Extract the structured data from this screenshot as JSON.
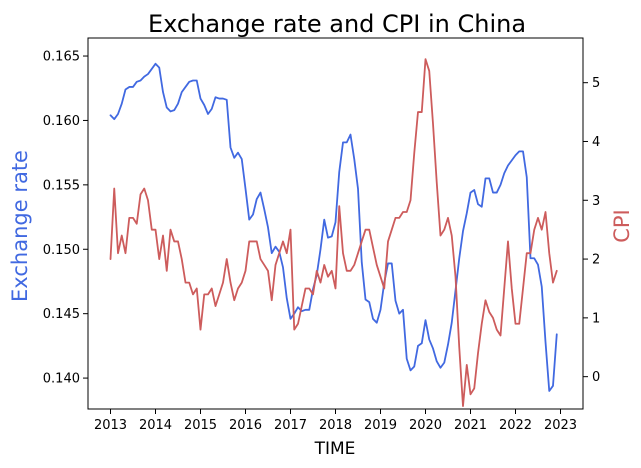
{
  "chart_data": {
    "type": "line",
    "title": "Exchange rate and CPI in China",
    "xlabel": "TIME",
    "ylabel_left": "Exchange rate",
    "ylabel_right": "CPI",
    "xlim": [
      2012.5,
      2023.5
    ],
    "ylim_left": [
      0.1376,
      0.1664
    ],
    "ylim_right": [
      -0.55,
      5.76
    ],
    "x_ticks": [
      2013,
      2014,
      2015,
      2016,
      2017,
      2018,
      2019,
      2020,
      2021,
      2022,
      2023
    ],
    "y_ticks_left": [
      0.14,
      0.145,
      0.15,
      0.155,
      0.16,
      0.165
    ],
    "y_ticks_right": [
      0,
      1,
      2,
      3,
      4,
      5
    ],
    "colors": {
      "exchange": "#4169e1",
      "cpi": "#cd5c5c"
    },
    "grid": false,
    "series": [
      {
        "key": "exchange",
        "axis": "left",
        "points": [
          [
            2013.0,
            0.1604
          ],
          [
            2013.083,
            0.1601
          ],
          [
            2013.167,
            0.1605
          ],
          [
            2013.25,
            0.1613
          ],
          [
            2013.333,
            0.1624
          ],
          [
            2013.417,
            0.1626
          ],
          [
            2013.5,
            0.1626
          ],
          [
            2013.583,
            0.163
          ],
          [
            2013.667,
            0.1631
          ],
          [
            2013.75,
            0.1634
          ],
          [
            2013.833,
            0.1636
          ],
          [
            2013.917,
            0.164
          ],
          [
            2014.0,
            0.1644
          ],
          [
            2014.083,
            0.1641
          ],
          [
            2014.167,
            0.1622
          ],
          [
            2014.25,
            0.161
          ],
          [
            2014.333,
            0.1607
          ],
          [
            2014.417,
            0.1608
          ],
          [
            2014.5,
            0.1613
          ],
          [
            2014.583,
            0.1622
          ],
          [
            2014.667,
            0.1626
          ],
          [
            2014.75,
            0.163
          ],
          [
            2014.833,
            0.1631
          ],
          [
            2014.917,
            0.1631
          ],
          [
            2015.0,
            0.1617
          ],
          [
            2015.083,
            0.1612
          ],
          [
            2015.167,
            0.1605
          ],
          [
            2015.25,
            0.1609
          ],
          [
            2015.333,
            0.1618
          ],
          [
            2015.417,
            0.1617
          ],
          [
            2015.5,
            0.1617
          ],
          [
            2015.583,
            0.1616
          ],
          [
            2015.667,
            0.1579
          ],
          [
            2015.75,
            0.1571
          ],
          [
            2015.833,
            0.1575
          ],
          [
            2015.917,
            0.157
          ],
          [
            2016.0,
            0.1547
          ],
          [
            2016.083,
            0.1523
          ],
          [
            2016.167,
            0.1527
          ],
          [
            2016.25,
            0.1539
          ],
          [
            2016.333,
            0.1544
          ],
          [
            2016.417,
            0.1531
          ],
          [
            2016.5,
            0.1517
          ],
          [
            2016.583,
            0.1497
          ],
          [
            2016.667,
            0.1502
          ],
          [
            2016.75,
            0.1498
          ],
          [
            2016.833,
            0.1486
          ],
          [
            2016.917,
            0.1462
          ],
          [
            2017.0,
            0.1446
          ],
          [
            2017.083,
            0.145
          ],
          [
            2017.167,
            0.1455
          ],
          [
            2017.25,
            0.1452
          ],
          [
            2017.333,
            0.1453
          ],
          [
            2017.417,
            0.1453
          ],
          [
            2017.5,
            0.1469
          ],
          [
            2017.583,
            0.148
          ],
          [
            2017.667,
            0.15
          ],
          [
            2017.75,
            0.1523
          ],
          [
            2017.833,
            0.1509
          ],
          [
            2017.917,
            0.151
          ],
          [
            2018.0,
            0.1521
          ],
          [
            2018.083,
            0.156
          ],
          [
            2018.167,
            0.1583
          ],
          [
            2018.25,
            0.1583
          ],
          [
            2018.333,
            0.1589
          ],
          [
            2018.417,
            0.157
          ],
          [
            2018.5,
            0.1547
          ],
          [
            2018.583,
            0.149
          ],
          [
            2018.667,
            0.1461
          ],
          [
            2018.75,
            0.1459
          ],
          [
            2018.833,
            0.1446
          ],
          [
            2018.917,
            0.1443
          ],
          [
            2019.0,
            0.1453
          ],
          [
            2019.083,
            0.1474
          ],
          [
            2019.167,
            0.1489
          ],
          [
            2019.25,
            0.1489
          ],
          [
            2019.333,
            0.146
          ],
          [
            2019.417,
            0.145
          ],
          [
            2019.5,
            0.1453
          ],
          [
            2019.583,
            0.1415
          ],
          [
            2019.667,
            0.1406
          ],
          [
            2019.75,
            0.1409
          ],
          [
            2019.833,
            0.1425
          ],
          [
            2019.917,
            0.1427
          ],
          [
            2020.0,
            0.1445
          ],
          [
            2020.083,
            0.143
          ],
          [
            2020.167,
            0.1423
          ],
          [
            2020.25,
            0.1413
          ],
          [
            2020.333,
            0.1408
          ],
          [
            2020.417,
            0.1412
          ],
          [
            2020.5,
            0.1426
          ],
          [
            2020.583,
            0.1443
          ],
          [
            2020.667,
            0.1468
          ],
          [
            2020.75,
            0.1493
          ],
          [
            2020.833,
            0.1514
          ],
          [
            2020.917,
            0.1528
          ],
          [
            2021.0,
            0.1544
          ],
          [
            2021.083,
            0.1546
          ],
          [
            2021.167,
            0.1535
          ],
          [
            2021.25,
            0.1533
          ],
          [
            2021.333,
            0.1555
          ],
          [
            2021.417,
            0.1555
          ],
          [
            2021.5,
            0.1544
          ],
          [
            2021.583,
            0.1544
          ],
          [
            2021.667,
            0.155
          ],
          [
            2021.75,
            0.1559
          ],
          [
            2021.833,
            0.1565
          ],
          [
            2021.917,
            0.1569
          ],
          [
            2022.0,
            0.1573
          ],
          [
            2022.083,
            0.1576
          ],
          [
            2022.167,
            0.1576
          ],
          [
            2022.25,
            0.1556
          ],
          [
            2022.333,
            0.1493
          ],
          [
            2022.417,
            0.1493
          ],
          [
            2022.5,
            0.1488
          ],
          [
            2022.583,
            0.1471
          ],
          [
            2022.667,
            0.1428
          ],
          [
            2022.75,
            0.139
          ],
          [
            2022.833,
            0.1394
          ],
          [
            2022.917,
            0.1434
          ]
        ]
      },
      {
        "key": "cpi",
        "axis": "right",
        "points": [
          [
            2013.0,
            2.0
          ],
          [
            2013.083,
            3.2
          ],
          [
            2013.167,
            2.1
          ],
          [
            2013.25,
            2.4
          ],
          [
            2013.333,
            2.1
          ],
          [
            2013.417,
            2.7
          ],
          [
            2013.5,
            2.7
          ],
          [
            2013.583,
            2.6
          ],
          [
            2013.667,
            3.1
          ],
          [
            2013.75,
            3.2
          ],
          [
            2013.833,
            3.0
          ],
          [
            2013.917,
            2.5
          ],
          [
            2014.0,
            2.5
          ],
          [
            2014.083,
            2.0
          ],
          [
            2014.167,
            2.4
          ],
          [
            2014.25,
            1.8
          ],
          [
            2014.333,
            2.5
          ],
          [
            2014.417,
            2.3
          ],
          [
            2014.5,
            2.3
          ],
          [
            2014.583,
            2.0
          ],
          [
            2014.667,
            1.6
          ],
          [
            2014.75,
            1.6
          ],
          [
            2014.833,
            1.4
          ],
          [
            2014.917,
            1.5
          ],
          [
            2015.0,
            0.8
          ],
          [
            2015.083,
            1.4
          ],
          [
            2015.167,
            1.4
          ],
          [
            2015.25,
            1.5
          ],
          [
            2015.333,
            1.2
          ],
          [
            2015.417,
            1.4
          ],
          [
            2015.5,
            1.6
          ],
          [
            2015.583,
            2.0
          ],
          [
            2015.667,
            1.6
          ],
          [
            2015.75,
            1.3
          ],
          [
            2015.833,
            1.5
          ],
          [
            2015.917,
            1.6
          ],
          [
            2016.0,
            1.8
          ],
          [
            2016.083,
            2.3
          ],
          [
            2016.167,
            2.3
          ],
          [
            2016.25,
            2.3
          ],
          [
            2016.333,
            2.0
          ],
          [
            2016.417,
            1.9
          ],
          [
            2016.5,
            1.8
          ],
          [
            2016.583,
            1.3
          ],
          [
            2016.667,
            1.9
          ],
          [
            2016.75,
            2.1
          ],
          [
            2016.833,
            2.3
          ],
          [
            2016.917,
            2.1
          ],
          [
            2017.0,
            2.5
          ],
          [
            2017.083,
            0.8
          ],
          [
            2017.167,
            0.9
          ],
          [
            2017.25,
            1.2
          ],
          [
            2017.333,
            1.5
          ],
          [
            2017.417,
            1.5
          ],
          [
            2017.5,
            1.4
          ],
          [
            2017.583,
            1.8
          ],
          [
            2017.667,
            1.6
          ],
          [
            2017.75,
            1.9
          ],
          [
            2017.833,
            1.7
          ],
          [
            2017.917,
            1.8
          ],
          [
            2018.0,
            1.5
          ],
          [
            2018.083,
            2.9
          ],
          [
            2018.167,
            2.1
          ],
          [
            2018.25,
            1.8
          ],
          [
            2018.333,
            1.8
          ],
          [
            2018.417,
            1.9
          ],
          [
            2018.5,
            2.1
          ],
          [
            2018.583,
            2.3
          ],
          [
            2018.667,
            2.5
          ],
          [
            2018.75,
            2.5
          ],
          [
            2018.833,
            2.2
          ],
          [
            2018.917,
            1.9
          ],
          [
            2019.0,
            1.7
          ],
          [
            2019.083,
            1.5
          ],
          [
            2019.167,
            2.3
          ],
          [
            2019.25,
            2.5
          ],
          [
            2019.333,
            2.7
          ],
          [
            2019.417,
            2.7
          ],
          [
            2019.5,
            2.8
          ],
          [
            2019.583,
            2.8
          ],
          [
            2019.667,
            3.0
          ],
          [
            2019.75,
            3.8
          ],
          [
            2019.833,
            4.5
          ],
          [
            2019.917,
            4.5
          ],
          [
            2020.0,
            5.4
          ],
          [
            2020.083,
            5.2
          ],
          [
            2020.167,
            4.3
          ],
          [
            2020.25,
            3.3
          ],
          [
            2020.333,
            2.4
          ],
          [
            2020.417,
            2.5
          ],
          [
            2020.5,
            2.7
          ],
          [
            2020.583,
            2.4
          ],
          [
            2020.667,
            1.7
          ],
          [
            2020.75,
            0.5
          ],
          [
            2020.833,
            -0.5
          ],
          [
            2020.917,
            0.2
          ],
          [
            2021.0,
            -0.3
          ],
          [
            2021.083,
            -0.2
          ],
          [
            2021.167,
            0.4
          ],
          [
            2021.25,
            0.9
          ],
          [
            2021.333,
            1.3
          ],
          [
            2021.417,
            1.1
          ],
          [
            2021.5,
            1.0
          ],
          [
            2021.583,
            0.8
          ],
          [
            2021.667,
            0.7
          ],
          [
            2021.75,
            1.5
          ],
          [
            2021.833,
            2.3
          ],
          [
            2021.917,
            1.5
          ],
          [
            2022.0,
            0.9
          ],
          [
            2022.083,
            0.9
          ],
          [
            2022.167,
            1.5
          ],
          [
            2022.25,
            2.1
          ],
          [
            2022.333,
            2.1
          ],
          [
            2022.417,
            2.5
          ],
          [
            2022.5,
            2.7
          ],
          [
            2022.583,
            2.5
          ],
          [
            2022.667,
            2.8
          ],
          [
            2022.75,
            2.1
          ],
          [
            2022.833,
            1.6
          ],
          [
            2022.917,
            1.8
          ]
        ]
      }
    ]
  }
}
